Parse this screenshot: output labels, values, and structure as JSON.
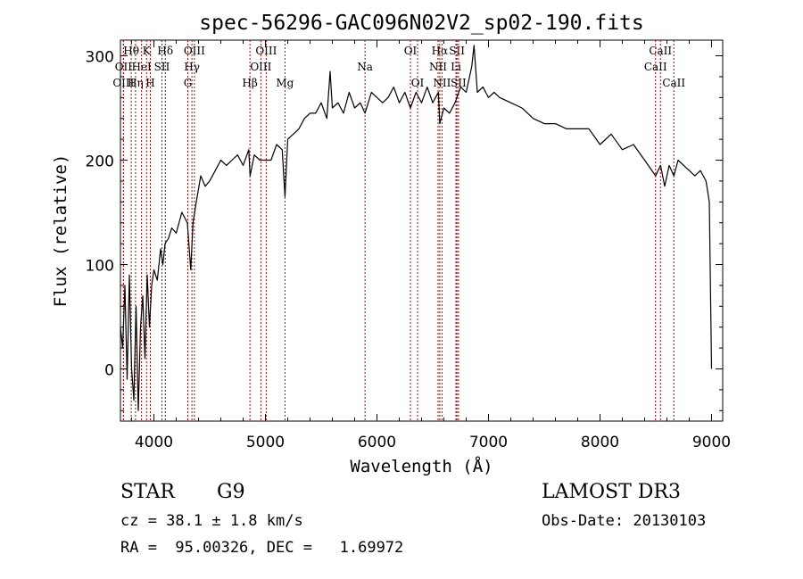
{
  "chart_data": {
    "type": "line",
    "title": "spec-56296-GAC096N02V2_sp02-190.fits",
    "xlabel": "Wavelength (Å)",
    "ylabel": "Flux (relative)",
    "xlim": [
      3700,
      9100
    ],
    "ylim": [
      -50,
      315
    ],
    "x_ticks": [
      4000,
      5000,
      6000,
      7000,
      8000,
      9000
    ],
    "y_ticks": [
      0,
      100,
      200,
      300
    ],
    "line_color": "#000000",
    "marker_color": "#b00000",
    "series": [
      {
        "name": "flux",
        "x": [
          3700,
          3720,
          3740,
          3760,
          3780,
          3800,
          3820,
          3840,
          3860,
          3880,
          3900,
          3920,
          3940,
          3960,
          3980,
          4000,
          4030,
          4060,
          4080,
          4100,
          4130,
          4160,
          4200,
          4250,
          4300,
          4330,
          4350,
          4380,
          4420,
          4460,
          4500,
          4550,
          4600,
          4650,
          4700,
          4750,
          4800,
          4850,
          4862,
          4900,
          4950,
          5000,
          5050,
          5100,
          5150,
          5175,
          5200,
          5250,
          5300,
          5350,
          5400,
          5450,
          5500,
          5550,
          5580,
          5600,
          5650,
          5700,
          5750,
          5800,
          5850,
          5893,
          5950,
          6000,
          6050,
          6100,
          6150,
          6200,
          6250,
          6300,
          6350,
          6400,
          6450,
          6500,
          6550,
          6563,
          6600,
          6650,
          6700,
          6750,
          6800,
          6850,
          6870,
          6900,
          6950,
          7000,
          7050,
          7100,
          7200,
          7300,
          7400,
          7500,
          7600,
          7700,
          7800,
          7900,
          8000,
          8100,
          8200,
          8300,
          8400,
          8498,
          8542,
          8580,
          8620,
          8662,
          8700,
          8750,
          8800,
          8850,
          8900,
          8950,
          8980,
          9000
        ],
        "values": [
          40,
          20,
          80,
          -10,
          90,
          0,
          -30,
          60,
          -40,
          40,
          70,
          10,
          90,
          40,
          80,
          95,
          85,
          115,
          100,
          120,
          125,
          135,
          130,
          150,
          140,
          95,
          140,
          160,
          185,
          175,
          180,
          190,
          200,
          195,
          200,
          205,
          195,
          210,
          185,
          205,
          200,
          200,
          200,
          215,
          210,
          165,
          220,
          225,
          230,
          240,
          245,
          245,
          255,
          240,
          285,
          250,
          255,
          245,
          265,
          250,
          255,
          245,
          265,
          260,
          255,
          260,
          270,
          255,
          265,
          250,
          265,
          255,
          270,
          255,
          265,
          235,
          250,
          245,
          255,
          270,
          265,
          290,
          310,
          265,
          270,
          260,
          265,
          260,
          255,
          250,
          240,
          235,
          235,
          230,
          230,
          230,
          215,
          225,
          210,
          215,
          200,
          185,
          195,
          175,
          195,
          185,
          200,
          195,
          190,
          185,
          190,
          180,
          160,
          0
        ]
      }
    ],
    "lines_top": [
      {
        "label": "Hθ",
        "x": 3797
      },
      {
        "label": "K",
        "x": 3934
      },
      {
        "label": "Hδ",
        "x": 4102
      },
      {
        "label": "OIII",
        "x": 4363
      },
      {
        "label": "OIII",
        "x": 5007
      },
      {
        "label": "OI",
        "x": 6300
      },
      {
        "label": "Hα",
        "x": 6563
      },
      {
        "label": "SII",
        "x": 6717
      },
      {
        "label": "CaII",
        "x": 8542
      }
    ],
    "lines_mid": [
      {
        "label": "OII",
        "x": 3727
      },
      {
        "label": "HeI",
        "x": 3889
      },
      {
        "label": "SII",
        "x": 4072
      },
      {
        "label": "Hγ",
        "x": 4341
      },
      {
        "label": "OIII",
        "x": 4959
      },
      {
        "label": "Na",
        "x": 5893
      },
      {
        "label": "NII",
        "x": 6548
      },
      {
        "label": "Li",
        "x": 6708
      },
      {
        "label": "CaII",
        "x": 8498
      }
    ],
    "lines_low": [
      {
        "label": "OIII",
        "x": 3727
      },
      {
        "label": "Hη",
        "x": 3835
      },
      {
        "label": "H",
        "x": 3968
      },
      {
        "label": "G",
        "x": 4304
      },
      {
        "label": "Hβ",
        "x": 4861
      },
      {
        "label": "Mg",
        "x": 5175
      },
      {
        "label": "OI",
        "x": 6364
      },
      {
        "label": "NII",
        "x": 6583
      },
      {
        "label": "SII",
        "x": 6731
      },
      {
        "label": "CaII",
        "x": 8662
      }
    ]
  },
  "info": {
    "object_type": "STAR",
    "subclass": "G9",
    "survey": "LAMOST DR3",
    "redshift": "cz = 38.1 ± 1.8 km/s",
    "obs_date": "Obs-Date: 20130103",
    "coords": "RA =  95.00326, DEC =   1.69972"
  }
}
